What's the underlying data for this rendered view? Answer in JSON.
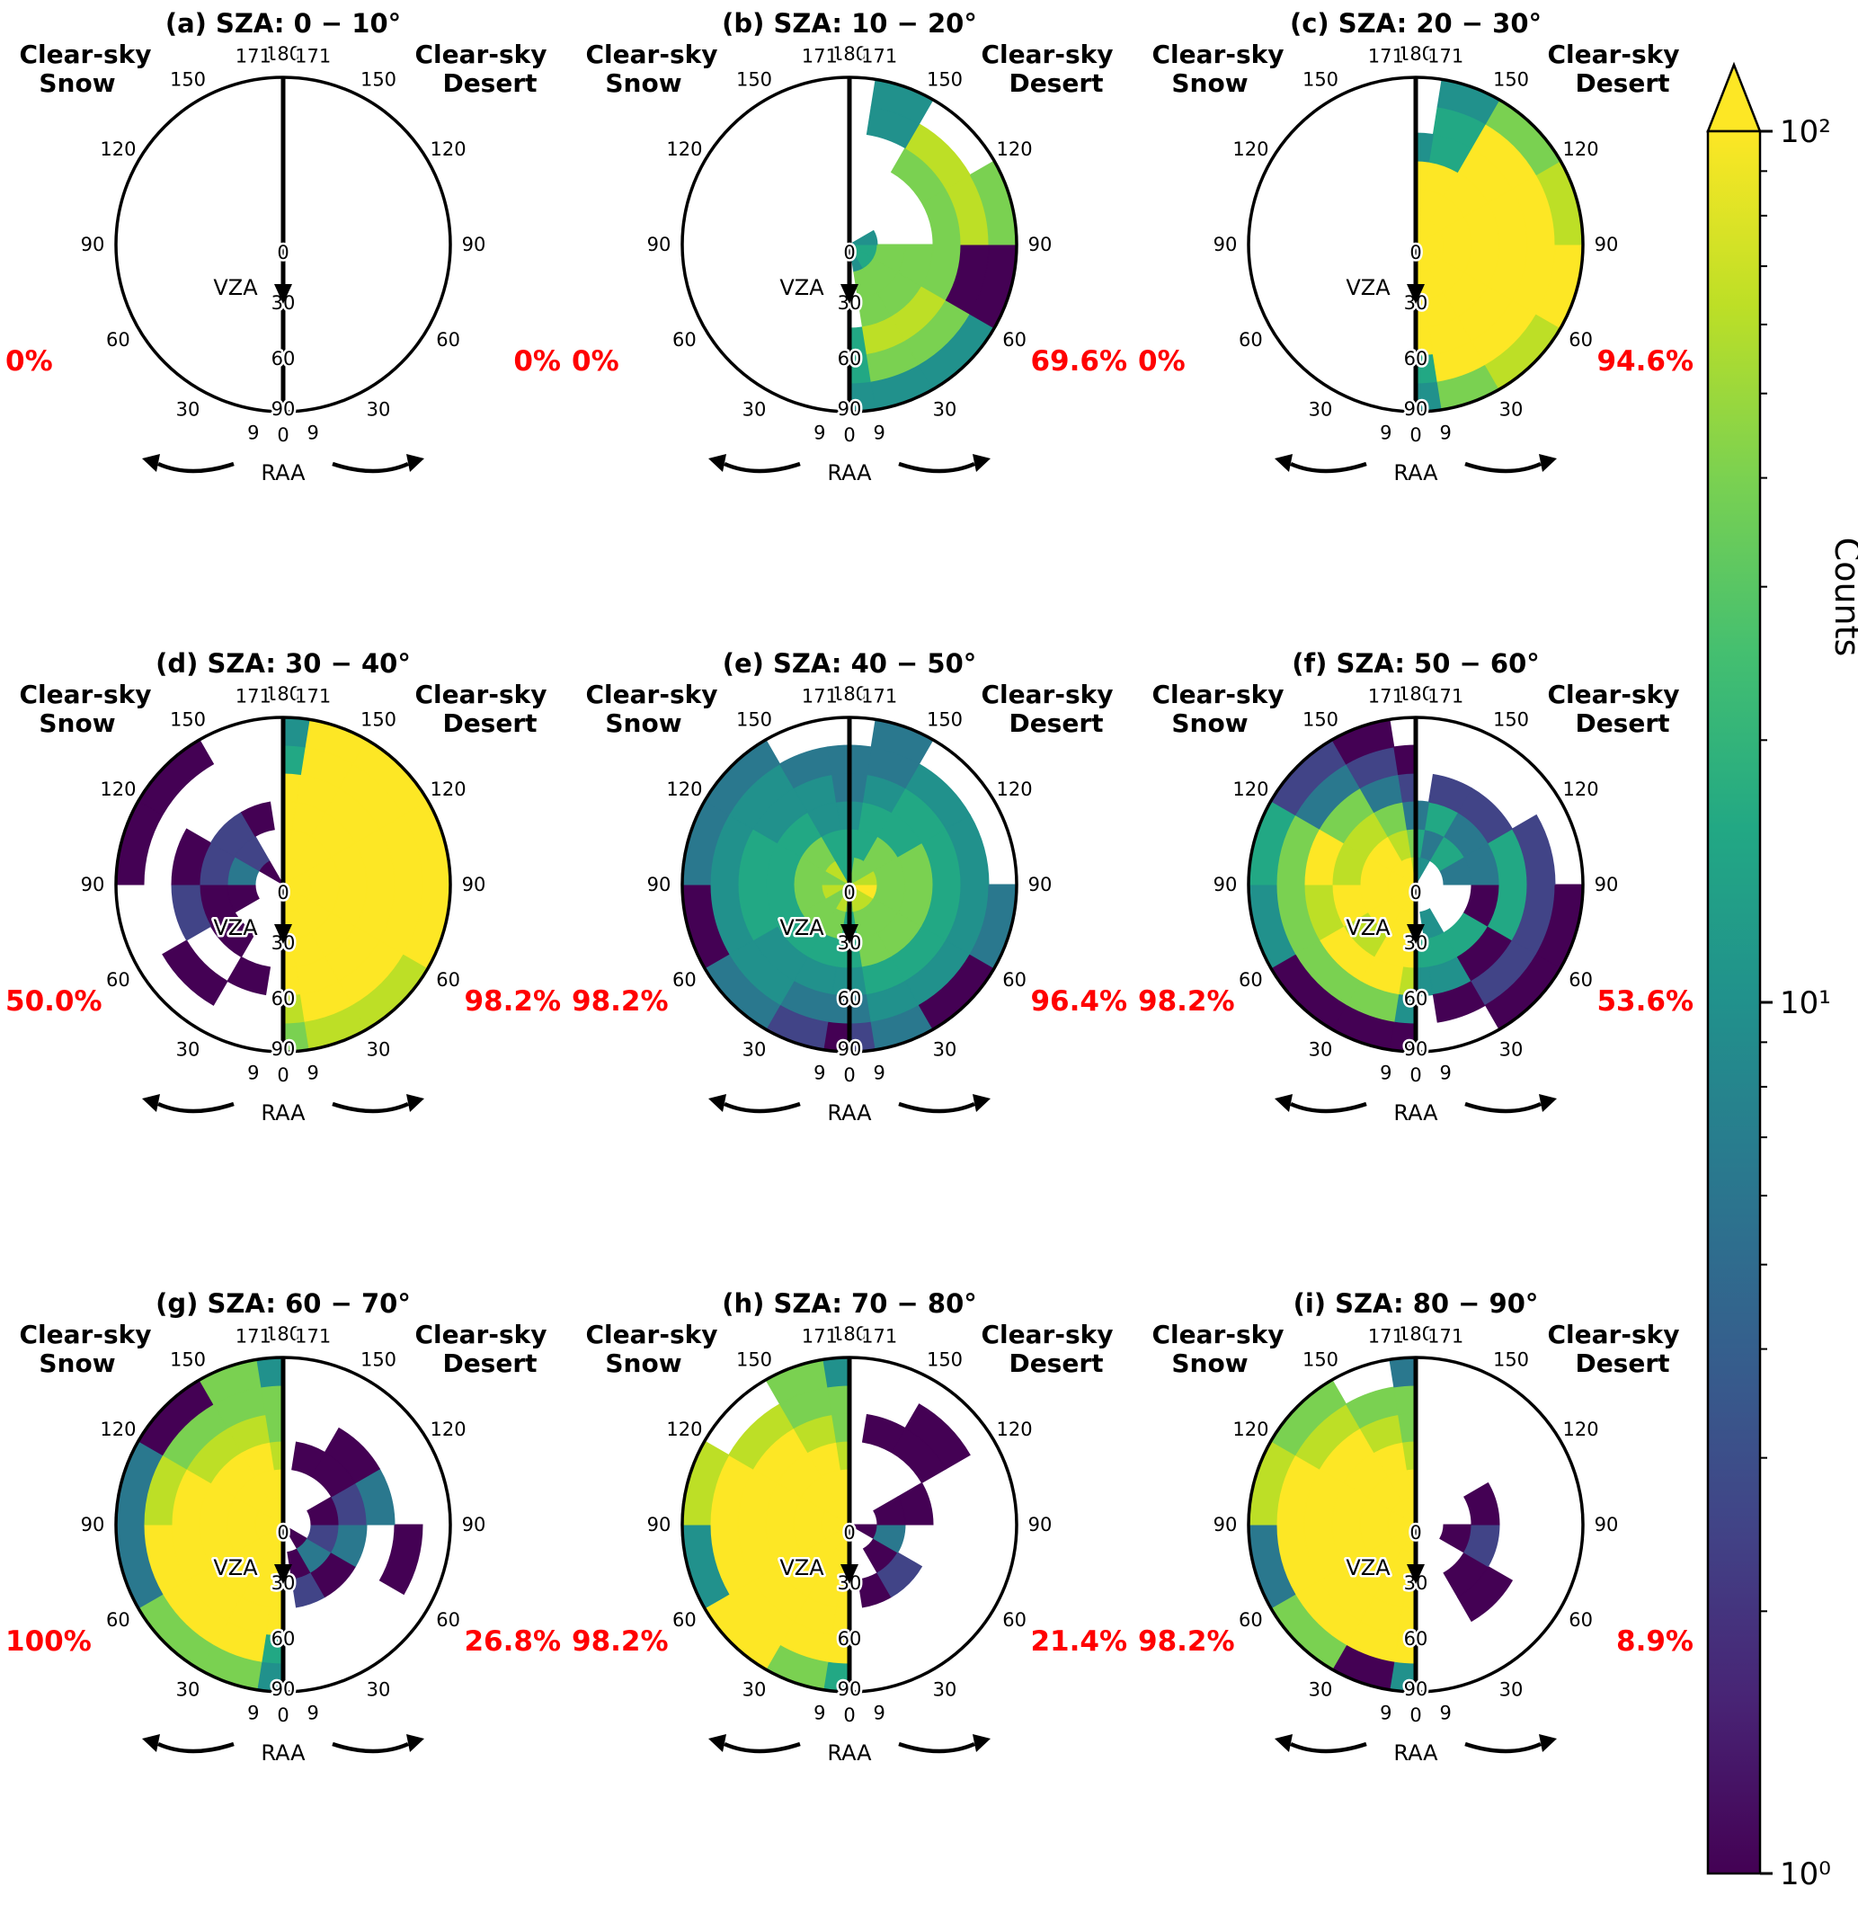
{
  "figure": {
    "left_surface": {
      "line1": "Clear-sky",
      "line2": "Snow"
    },
    "right_surface": {
      "line1": "Clear-sky",
      "line2": "Desert"
    },
    "vza_axis_label": "VZA",
    "raa_axis_label": "RAA",
    "raa_tick_labels": [
      "180",
      "171",
      "150",
      "120",
      "90",
      "60",
      "30",
      "9",
      "0"
    ],
    "vza_tick_labels": [
      "0",
      "30",
      "60",
      "90"
    ],
    "percent_color": "#ff0000"
  },
  "colorbar": {
    "label": "Counts",
    "ticks": [
      {
        "label": "10²",
        "value": 100
      },
      {
        "label": "10¹",
        "value": 10
      },
      {
        "label": "10⁰",
        "value": 1
      }
    ],
    "extend": "max"
  },
  "palette": {
    "codes": {
      "p": "#440154",
      "u": "#482475",
      "v": "#414487",
      "s": "#355f8d",
      "b": "#2a788e",
      "c": "#21918c",
      "t": "#22a884",
      "m": "#44bf70",
      "g": "#7ad151",
      "l": "#bddf26",
      "y": "#fde725"
    },
    "viridis_stops": [
      "#fde725",
      "#bddf26",
      "#7ad151",
      "#44bf70",
      "#22a884",
      "#21918c",
      "#2a788e",
      "#355f8d",
      "#414487",
      "#482475",
      "#440154"
    ]
  },
  "chart_data": {
    "type": "heatmap",
    "projection": "half-polar",
    "angle_axis": "RAA (deg): 0 at bottom to 180 at top, mirrored on left (Snow) and right (Desert) halves",
    "radius_axis": "VZA (deg): 0 at center to 90 at rim",
    "raa_bin_edges_deg": [
      0,
      9,
      30,
      60,
      90,
      120,
      150,
      171,
      180
    ],
    "vza_bin_edges_deg": [
      0,
      15,
      30,
      45,
      60,
      75,
      90
    ],
    "counts_scale": {
      "type": "log",
      "min": 1,
      "max": 100,
      "label": "Counts"
    },
    "left_half": "Clear-sky Snow",
    "right_half": "Clear-sky Desert",
    "grid_note": "grids: 8 strings = RAA sectors from bottom (0-9) to top (171-180); 6 chars = VZA rings from center (0-15) to rim (75-90); '.'=no data, letters = palette.codes count colors",
    "panels": [
      {
        "id": "a",
        "title": "(a) SZA: 0 − 10°",
        "sza_range_deg": [
          0,
          10
        ],
        "snow_pct": "0%",
        "desert_pct": "0%",
        "snow_grid": [
          "......",
          "......",
          "......",
          "......",
          "......",
          "......",
          "......",
          "......"
        ],
        "desert_grid": [
          "......",
          "......",
          "......",
          "......",
          "......",
          "......",
          "......",
          "......"
        ]
      },
      {
        "id": "b",
        "title": "(b) SZA: 10 − 20°",
        "sza_range_deg": [
          10,
          20
        ],
        "snow_pct": "0%",
        "desert_pct": "69.6%",
        "snow_grid": [
          "......",
          "......",
          "......",
          "......",
          "......",
          "......",
          "......",
          "......"
        ],
        "desert_grid": [
          "...ttc",
          "cgglgc",
          "tgglgc",
          "tgggpp",
          "c..glg",
          "...gl.",
          "....cc",
          "......"
        ]
      },
      {
        "id": "c",
        "title": "(c) SZA: 20 − 30°",
        "sza_range_deg": [
          20,
          30
        ],
        "snow_pct": "0%",
        "desert_pct": "94.6%",
        "snow_grid": [
          "......",
          "......",
          "......",
          "......",
          "......",
          "......",
          "......",
          "......"
        ],
        "desert_grid": [
          "yyyytc",
          "yyyyyg",
          "yyyyyl",
          "yyyyyy",
          "yyyyyl",
          "yyyyyg",
          "yyyttc",
          "yyyc.."
        ]
      },
      {
        "id": "d",
        "title": "(d) SZA: 30 − 40°",
        "sza_range_deg": [
          30,
          40
        ],
        "snow_pct": "50.0%",
        "desert_pct": "98.2%",
        "snow_grid": [
          "......",
          "...p..",
          "..p.p.",
          ".ppv..",
          ".bvp.p",
          "pvv..p",
          "..p...",
          "......"
        ],
        "desert_grid": [
          "yyyylg",
          "yyyyyl",
          "yyyyyl",
          "yyyyyy",
          "yyyyyy",
          "yyyyyy",
          "yyyyyy",
          "yyyytc"
        ]
      },
      {
        "id": "e",
        "title": "(e) SZA: 40 − 50°",
        "sza_range_deg": [
          40,
          50
        ],
        "snow_pct": "98.2%",
        "desert_pct": "96.4%",
        "snow_grid": [
          "gttcbp",
          "lgtcbv",
          "ggtccb",
          "lgttcp",
          "ggttcb",
          "lgtccb",
          "ttccb.",
          "ttcbb."
        ],
        "desert_grid": [
          "gttcbv",
          "lggtcb",
          "lggtcp",
          "yggtcb",
          "lggtc.",
          "ggttc.",
          "gttcbb",
          "ttcbb."
        ]
      },
      {
        "id": "f",
        "title": "(f) SZA: 50 − 60°",
        "sza_range_deg": [
          50,
          60
        ],
        "snow_pct": "98.2%",
        "desert_pct": "53.6%",
        "snow_grid": [
          "yyylcp",
          "yyyygp",
          "yylygp",
          "yyylgc",
          "yylygt",
          "yylgbv",
          "ylgbvp",
          "lgbvp."
        ],
        "desert_grid": [
          "..tc..",
          ".ctcp.",
          "..tpvp",
          "..ptvp",
          ".bbtv.",
          ".tbv..",
          "cbtv..",
          "ctb..."
        ]
      },
      {
        "id": "g",
        "title": "(g) SZA: 60 − 70°",
        "sza_range_deg": [
          60,
          70
        ],
        "snow_pct": "100%",
        "desert_pct": "26.8%",
        "snow_grid": [
          "yyyytc",
          "yyyyyg",
          "yyyyyg",
          "yyyyyb",
          "yyyylb",
          "yyylgp",
          "yyylgg",
          "yylggc"
        ],
        "desert_grid": [
          "......",
          ".pv...",
          "pbp...",
          ".vb.p.",
          ".pvb..",
          "..pp..",
          "..p...",
          "......"
        ]
      },
      {
        "id": "h",
        "title": "(h) SZA: 70 − 80°",
        "sza_range_deg": [
          70,
          80
        ],
        "snow_pct": "98.2%",
        "desert_pct": "21.4%",
        "snow_grid": [
          "yyyyyt",
          "yyyyyg",
          "yyyyyy",
          "yyyyyc",
          "yyyyyl",
          "yyyyl.",
          "yyylgg",
          "yylggc"
        ],
        "desert_grid": [
          "......",
          "..p...",
          ".pv...",
          "pb....",
          ".pp...",
          "...pp.",
          "...p..",
          "......"
        ]
      },
      {
        "id": "i",
        "title": "(i) SZA: 80 − 90°",
        "sza_range_deg": [
          80,
          90
        ],
        "snow_pct": "98.2%",
        "desert_pct": "8.9%",
        "snow_grid": [
          "yyyyyc",
          "yyyyyp",
          "yyyyyg",
          "yyyyyb",
          "yyyyyl",
          "yyyylg",
          "yyylg.",
          "yylggb"
        ],
        "desert_grid": [
          "......",
          "......",
          "..pp..",
          ".pv...",
          "..p...",
          "......",
          "......",
          "......"
        ]
      }
    ]
  }
}
